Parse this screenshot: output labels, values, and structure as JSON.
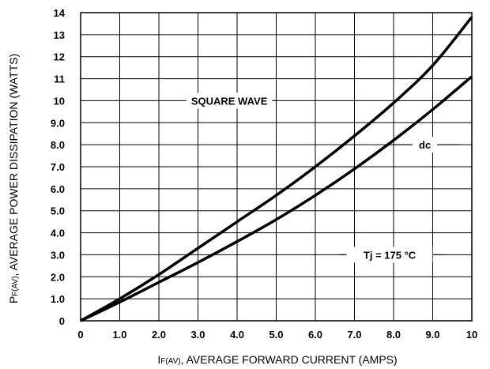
{
  "chart_data": {
    "type": "line",
    "xlabel": {
      "main": "I",
      "sub": "F(AV)",
      "rest": ", AVERAGE FORWARD CURRENT (AMPS)"
    },
    "ylabel": {
      "main": "P",
      "sub": "F(AV)",
      "rest": ", AVERAGE POWER DISSIPATION (WATTS)"
    },
    "xlim": [
      0,
      10
    ],
    "ylim": [
      0,
      14
    ],
    "grid": true,
    "x_ticks": [
      "0",
      "1.0",
      "2.0",
      "3.0",
      "4.0",
      "5.0",
      "6.0",
      "7.0",
      "8.0",
      "9.0",
      "10"
    ],
    "y_ticks": [
      "0",
      "1.0",
      "2.0",
      "3.0",
      "4.0",
      "5.0",
      "6.0",
      "7.0",
      "8.0",
      "9.0",
      "10",
      "11",
      "12",
      "13",
      "14"
    ],
    "series": [
      {
        "name": "SQUARE WAVE",
        "x": [
          0,
          1,
          2,
          3,
          4,
          5,
          6,
          7,
          8,
          9,
          10
        ],
        "y": [
          0,
          1.0,
          2.1,
          3.3,
          4.5,
          5.7,
          7.0,
          8.4,
          9.9,
          11.6,
          13.8
        ]
      },
      {
        "name": "dc",
        "x": [
          0,
          1,
          2,
          3,
          4,
          5,
          6,
          7,
          8,
          9,
          10
        ],
        "y": [
          0,
          0.85,
          1.75,
          2.65,
          3.6,
          4.6,
          5.7,
          6.9,
          8.2,
          9.6,
          11.1
        ]
      }
    ],
    "annotations": [
      {
        "text": "SQUARE WAVE",
        "series": 0
      },
      {
        "text": "dc",
        "series": 1
      },
      {
        "text": "Tj = 175 °C"
      }
    ]
  }
}
